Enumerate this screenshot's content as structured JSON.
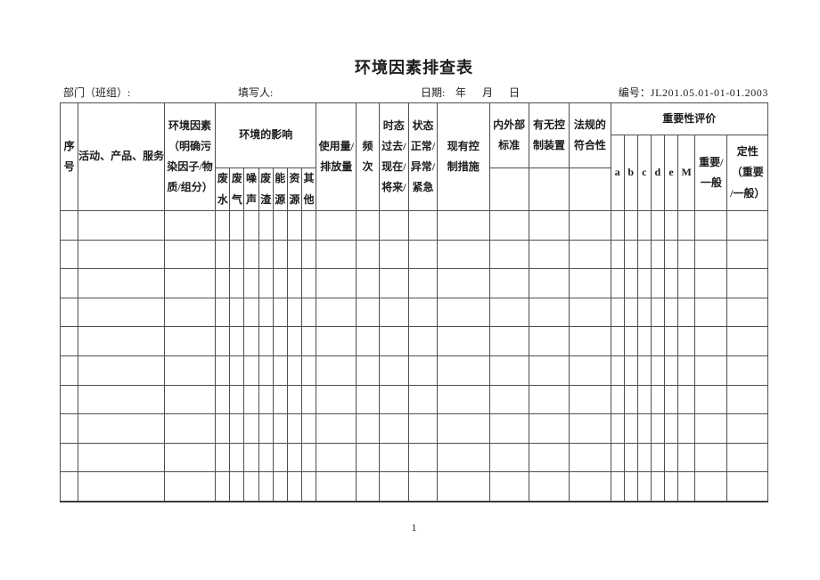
{
  "document": {
    "title": "环境因素排查表",
    "page_number": "1"
  },
  "colors": {
    "background": "#ffffff",
    "text": "#1c1c1c",
    "grid_border": "#4e4e4e"
  },
  "meta": {
    "department_label": "部门（班组）:",
    "filler_label": "填写人:",
    "date_label": "日期:",
    "year": "年",
    "month": "月",
    "day": "日",
    "code_label": "编号：",
    "code_value": "JL201.05.01-01-01.2003"
  },
  "table": {
    "header": {
      "seq": "序\n号",
      "activity": "活动、产品、服务",
      "factor": "环境因素\n（明确污\n染因子/物\n质/组分）",
      "impact_group": "环境的影响",
      "impact_cols": [
        "废\n水",
        "废\n气",
        "噪\n声",
        "废\n渣",
        "能\n源",
        "资\n源",
        "其\n他"
      ],
      "usage": "使用量/\n排放量",
      "frequency": "频\n次",
      "tense": "时态\n过去/\n现在/\n将来/",
      "state": "状态\n正常/\n异常/\n紧急",
      "control": "现有控\n制措施",
      "standard": "内外部\n标准",
      "device": "有无控\n制装置",
      "compliance": "法规的\n符合性",
      "evaluation_group": "重要性评价",
      "evaluation_cols": [
        "a",
        "b",
        "c",
        "d",
        "e",
        "M",
        "重要/\n一般",
        "定性\n（重要\n/一般）"
      ]
    },
    "body": {
      "rows": 10,
      "columns": 26
    }
  }
}
